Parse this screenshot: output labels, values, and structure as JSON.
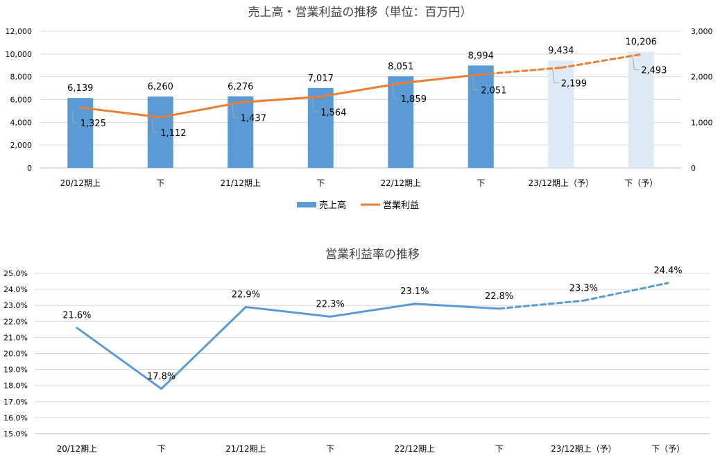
{
  "chart_data": [
    {
      "type": "bar",
      "title": "売上高・営業利益の推移（単位：百万円）",
      "categories": [
        "20/12期上",
        "下",
        "21/12期上",
        "下",
        "22/12期上",
        "下",
        "23/12期上（予）",
        "下（予）"
      ],
      "series": [
        {
          "name": "売上高",
          "type": "bar",
          "axis": "left",
          "values": [
            6139,
            6260,
            6276,
            7017,
            8051,
            8994,
            9434,
            10206
          ],
          "labels": [
            "6,139",
            "6,260",
            "6,276",
            "7,017",
            "8,051",
            "8,994",
            "9,434",
            "10,206"
          ],
          "forecast_from_index": 6,
          "color": "#5b9bd5",
          "forecast_color": "#deebf7"
        },
        {
          "name": "営業利益",
          "type": "line",
          "axis": "right",
          "values": [
            1325,
            1112,
            1437,
            1564,
            1859,
            2051,
            2199,
            2493
          ],
          "labels": [
            "1,325",
            "1,112",
            "1,437",
            "1,564",
            "1,859",
            "2,051",
            "2,199",
            "2,493"
          ],
          "forecast_from_index": 5,
          "color": "#ed7d31"
        }
      ],
      "y_left": {
        "min": 0,
        "max": 12000,
        "ticks": [
          "12,000",
          "10,000",
          "8,000",
          "6,000",
          "4,000",
          "2,000",
          "0"
        ]
      },
      "y_right": {
        "min": 0,
        "max": 3000,
        "ticks": [
          "3,000",
          "2,000",
          "1,000",
          "0"
        ]
      },
      "grid": true,
      "legend": {
        "placement": "bottom",
        "items": [
          "売上高",
          "営業利益"
        ]
      }
    },
    {
      "type": "line",
      "title": "営業利益率の推移",
      "categories": [
        "20/12期上",
        "下",
        "21/12期上",
        "下",
        "22/12期上",
        "下",
        "23/12期上（予）",
        "下（予）"
      ],
      "series": [
        {
          "name": "営業利益率",
          "values": [
            21.6,
            17.8,
            22.9,
            22.3,
            23.1,
            22.8,
            23.3,
            24.4
          ],
          "labels": [
            "21.6%",
            "17.8%",
            "22.9%",
            "22.3%",
            "23.1%",
            "22.8%",
            "23.3%",
            "24.4%"
          ],
          "forecast_from_index": 5,
          "color": "#5b9bd5"
        }
      ],
      "y": {
        "min": 15,
        "max": 25,
        "ticks": [
          "25.0%",
          "24.0%",
          "23.0%",
          "22.0%",
          "21.0%",
          "20.0%",
          "19.0%",
          "18.0%",
          "17.0%",
          "16.0%",
          "15.0%"
        ]
      },
      "grid": true
    }
  ]
}
